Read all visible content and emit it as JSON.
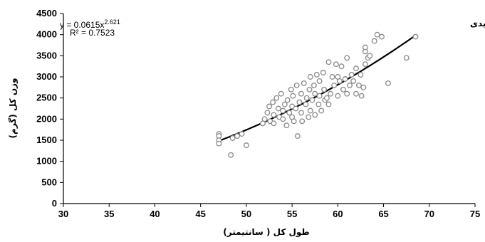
{
  "chart_data": {
    "type": "scatter",
    "panel_label": "حدیدی",
    "xlabel": "طول کل ( سانتیمتر)",
    "ylabel": "وزن کل (گرم)",
    "xlim": [
      30,
      75
    ],
    "ylim": [
      0,
      4500
    ],
    "x_ticks": [
      30,
      35,
      40,
      45,
      50,
      55,
      60,
      65,
      70,
      75
    ],
    "y_ticks": [
      0,
      500,
      1000,
      1500,
      2000,
      2500,
      3000,
      3500,
      4000,
      4500
    ],
    "grid": false,
    "equation": {
      "prefix": "y = 0.0615x",
      "exponent": "2.621",
      "r2": "R² = 0.7523"
    },
    "trendline": {
      "type": "power",
      "a": 0.0615,
      "b": 2.621,
      "x_range": [
        47,
        68.5
      ]
    },
    "points": [
      [
        47,
        1650
      ],
      [
        47,
        1600
      ],
      [
        47,
        1500
      ],
      [
        47,
        1420
      ],
      [
        48.3,
        1150
      ],
      [
        48.5,
        1550
      ],
      [
        49,
        1600
      ],
      [
        49.5,
        1650
      ],
      [
        50,
        1380
      ],
      [
        51.8,
        1900
      ],
      [
        52,
        2000
      ],
      [
        52.3,
        2150
      ],
      [
        52.5,
        2300
      ],
      [
        52.6,
        1950
      ],
      [
        52.9,
        2400
      ],
      [
        53,
        2100
      ],
      [
        53,
        1900
      ],
      [
        53.3,
        2500
      ],
      [
        53.5,
        2250
      ],
      [
        53.6,
        2050
      ],
      [
        53.8,
        2600
      ],
      [
        54,
        2200
      ],
      [
        54,
        2000
      ],
      [
        54.2,
        2350
      ],
      [
        54.4,
        1850
      ],
      [
        54.5,
        2450
      ],
      [
        54.7,
        2150
      ],
      [
        54.9,
        2700
      ],
      [
        55,
        2300
      ],
      [
        55,
        2050
      ],
      [
        55.1,
        2550
      ],
      [
        55.2,
        1950
      ],
      [
        55.4,
        2250
      ],
      [
        55.5,
        2800
      ],
      [
        55.6,
        1600
      ],
      [
        55.8,
        2400
      ],
      [
        56,
        2150
      ],
      [
        56,
        2600
      ],
      [
        56.1,
        1950
      ],
      [
        56.3,
        2850
      ],
      [
        56.5,
        2350
      ],
      [
        56.6,
        2500
      ],
      [
        56.8,
        2050
      ],
      [
        56.9,
        2700
      ],
      [
        57,
        2200
      ],
      [
        57,
        3000
      ],
      [
        57.2,
        2450
      ],
      [
        57.4,
        2800
      ],
      [
        57.5,
        2100
      ],
      [
        57.5,
        2600
      ],
      [
        57.7,
        3050
      ],
      [
        57.9,
        2350
      ],
      [
        58,
        2550
      ],
      [
        58,
        2900
      ],
      [
        58.2,
        2200
      ],
      [
        58.4,
        3100
      ],
      [
        58.5,
        2700
      ],
      [
        58.6,
        2450
      ],
      [
        58.8,
        2500
      ],
      [
        59,
        2350
      ],
      [
        59,
        3350
      ],
      [
        59.2,
        2600
      ],
      [
        59.4,
        3000
      ],
      [
        59.6,
        2800
      ],
      [
        59.8,
        3300
      ],
      [
        60,
        2550
      ],
      [
        60,
        3000
      ],
      [
        60.2,
        2900
      ],
      [
        60.4,
        3250
      ],
      [
        60.6,
        2700
      ],
      [
        60.8,
        2950
      ],
      [
        61,
        2600
      ],
      [
        61,
        3450
      ],
      [
        61.3,
        2800
      ],
      [
        61.5,
        3050
      ],
      [
        61.7,
        2900
      ],
      [
        62,
        3200
      ],
      [
        62,
        2600
      ],
      [
        62.3,
        2800
      ],
      [
        62.5,
        3050
      ],
      [
        62.6,
        2550
      ],
      [
        62.8,
        2750
      ],
      [
        63,
        3300
      ],
      [
        63,
        3600
      ],
      [
        63,
        3700
      ],
      [
        63.3,
        3450
      ],
      [
        63.5,
        3500
      ],
      [
        64,
        3850
      ],
      [
        64.3,
        4000
      ],
      [
        64.8,
        3950
      ],
      [
        65.5,
        2850
      ],
      [
        67.5,
        3450
      ],
      [
        68.5,
        3950
      ]
    ]
  }
}
